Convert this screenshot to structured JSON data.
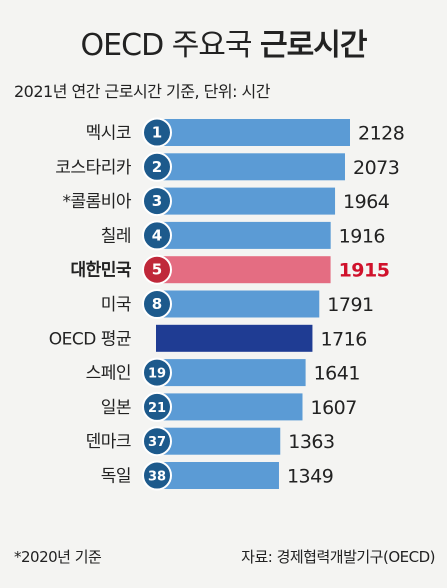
{
  "header": {
    "title_prefix": "OECD 주요국",
    "title_bold": "근로시간",
    "subtitle": "2021년 연간 근로시간 기준, 단위: 시간"
  },
  "footer": {
    "footnote": "*2020년 기준",
    "source": "자료: 경제협력개발기구(OECD)"
  },
  "colors": {
    "bar_default": "#5b9bd5",
    "bar_highlight": "#e46d82",
    "bar_average": "#1f3c93",
    "badge_default": "#1d5a8c",
    "badge_highlight": "#c0283a",
    "value_highlight": "#d0112b"
  },
  "chart_data": {
    "type": "bar",
    "orientation": "horizontal",
    "xlim": [
      0,
      2128
    ],
    "categories": [
      "멕시코",
      "코스타리카",
      "*콜롬비아",
      "칠레",
      "대한민국",
      "미국",
      "OECD 평균",
      "스페인",
      "일본",
      "덴마크",
      "독일"
    ],
    "ranks": [
      "1",
      "2",
      "3",
      "4",
      "5",
      "8",
      "",
      "19",
      "21",
      "37",
      "38"
    ],
    "values": [
      2128,
      2073,
      1964,
      1916,
      1915,
      1791,
      1716,
      1641,
      1607,
      1363,
      1349
    ],
    "highlight": "대한민국",
    "average_label": "OECD 평균"
  }
}
